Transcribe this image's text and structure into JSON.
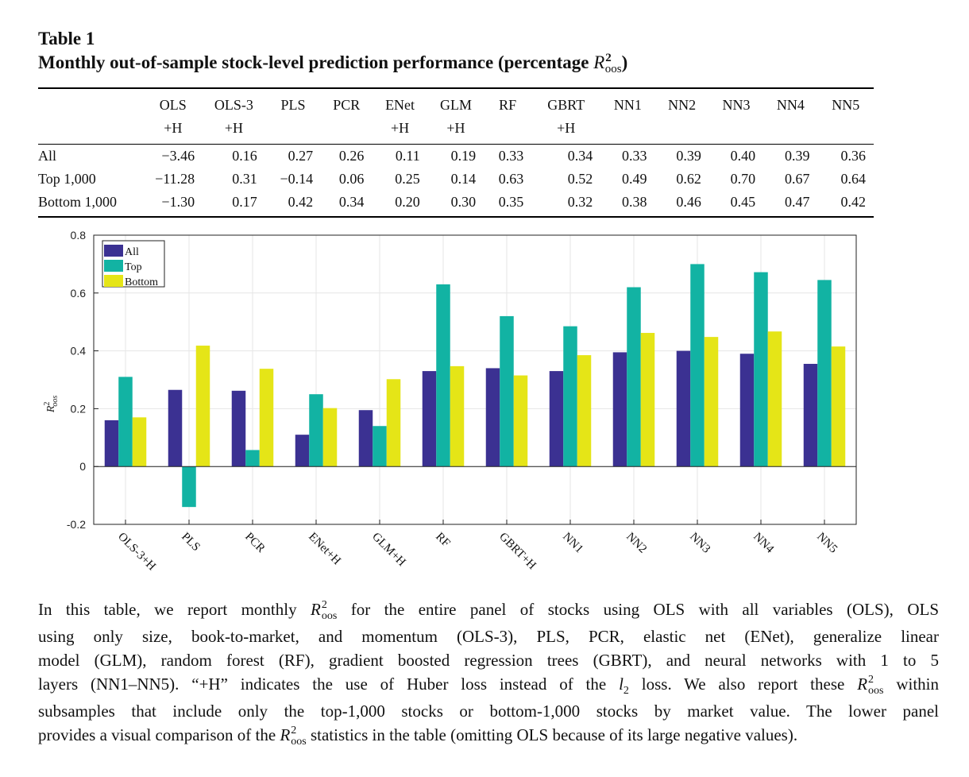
{
  "table_label": "Table 1",
  "table_title_pre": "Monthly out-of-sample stock-level prediction performance (percentage ",
  "r_symbol": "R",
  "r_sup": "2",
  "r_sub": "oos",
  "table_title_post": ")",
  "table": {
    "headers": [
      {
        "top": "OLS",
        "bottom": "+H"
      },
      {
        "top": "OLS-3",
        "bottom": "+H"
      },
      {
        "top": "PLS",
        "bottom": ""
      },
      {
        "top": "PCR",
        "bottom": ""
      },
      {
        "top": "ENet",
        "bottom": "+H"
      },
      {
        "top": "GLM",
        "bottom": "+H"
      },
      {
        "top": "RF",
        "bottom": ""
      },
      {
        "top": "GBRT",
        "bottom": "+H"
      },
      {
        "top": "NN1",
        "bottom": ""
      },
      {
        "top": "NN2",
        "bottom": ""
      },
      {
        "top": "NN3",
        "bottom": ""
      },
      {
        "top": "NN4",
        "bottom": ""
      },
      {
        "top": "NN5",
        "bottom": ""
      }
    ],
    "rows": [
      {
        "label": "All",
        "values": [
          "−3.46",
          "0.16",
          "0.27",
          "0.26",
          "0.11",
          "0.19",
          "0.33",
          "0.34",
          "0.33",
          "0.39",
          "0.40",
          "0.39",
          "0.36"
        ]
      },
      {
        "label": "Top 1,000",
        "values": [
          "−11.28",
          "0.31",
          "−0.14",
          "0.06",
          "0.25",
          "0.14",
          "0.63",
          "0.52",
          "0.49",
          "0.62",
          "0.70",
          "0.67",
          "0.64"
        ]
      },
      {
        "label": "Bottom 1,000",
        "values": [
          "−1.30",
          "0.17",
          "0.42",
          "0.34",
          "0.20",
          "0.30",
          "0.35",
          "0.32",
          "0.38",
          "0.46",
          "0.45",
          "0.47",
          "0.42"
        ]
      }
    ]
  },
  "chart_data": {
    "type": "bar",
    "categories": [
      "OLS-3+H",
      "PLS",
      "PCR",
      "ENet+H",
      "GLM+H",
      "RF",
      "GBRT+H",
      "NN1",
      "NN2",
      "NN3",
      "NN4",
      "NN5"
    ],
    "series": [
      {
        "name": "All",
        "color": "#3b3192",
        "values": [
          0.16,
          0.265,
          0.262,
          0.11,
          0.195,
          0.33,
          0.34,
          0.33,
          0.395,
          0.4,
          0.39,
          0.355
        ]
      },
      {
        "name": "Top",
        "color": "#12b3a3",
        "values": [
          0.31,
          -0.14,
          0.057,
          0.25,
          0.14,
          0.63,
          0.52,
          0.485,
          0.62,
          0.7,
          0.672,
          0.645
        ]
      },
      {
        "name": "Bottom",
        "color": "#e5e517",
        "values": [
          0.17,
          0.418,
          0.338,
          0.202,
          0.302,
          0.347,
          0.315,
          0.385,
          0.462,
          0.448,
          0.467,
          0.415
        ]
      }
    ],
    "ylim": [
      -0.2,
      0.8
    ],
    "yticks": [
      -0.2,
      0,
      0.2,
      0.4,
      0.6,
      0.8
    ],
    "ytick_labels": [
      "-0.2",
      "0",
      "0.2",
      "0.4",
      "0.6",
      "0.8"
    ],
    "ylabel_symbol": "R",
    "ylabel_sup": "2",
    "ylabel_sub": "oos",
    "grid": true,
    "legend_position": "top-left"
  },
  "caption_lines": [
    [
      {
        "t": "In this table, we report monthly "
      },
      {
        "r": true
      },
      {
        "t": " for the entire panel of stocks using OLS with all variables (OLS), OLS"
      }
    ],
    [
      {
        "t": "using only size, book-to-market, and momentum (OLS-3), PLS, PCR, elastic net (ENet), generalize linear"
      }
    ],
    [
      {
        "t": "model (GLM), random forest (RF), gradient boosted regression trees (GBRT), and neural networks with 1 to 5"
      }
    ],
    [
      {
        "t": "layers (NN1–NN5). “+H” indicates the use of Huber loss instead of the "
      },
      {
        "i": "l"
      },
      {
        "s": "2"
      },
      {
        "t": " loss. We also report these "
      },
      {
        "r": true
      },
      {
        "t": " within"
      }
    ],
    [
      {
        "t": "subsamples that include only the top-1,000 stocks or bottom-1,000 stocks by market value. The lower panel"
      }
    ],
    [
      {
        "t": "provides a visual comparison of the "
      },
      {
        "r": true
      },
      {
        "t": " statistics in the table (omitting OLS because of its large negative values)."
      }
    ]
  ]
}
